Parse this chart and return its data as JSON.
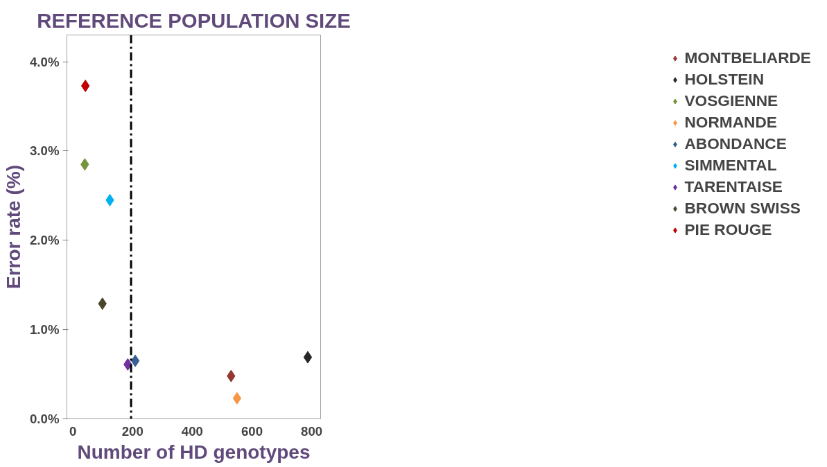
{
  "chart_data": {
    "type": "scatter",
    "title": "REFERENCE POPULATION SIZE",
    "xlabel": "Number of HD genotypes",
    "ylabel": "Error rate (%)",
    "xlim": [
      -20,
      830
    ],
    "ylim": [
      0,
      4.3
    ],
    "xticks": [
      0,
      200,
      400,
      600,
      800
    ],
    "yticks": [
      {
        "value": 0,
        "label": "0.0%"
      },
      {
        "value": 1,
        "label": "1.0%"
      },
      {
        "value": 2,
        "label": "2.0%"
      },
      {
        "value": 3,
        "label": "3.0%"
      },
      {
        "value": 4,
        "label": "4.0%"
      }
    ],
    "grid": false,
    "legend": "right",
    "marker": "diamond",
    "ref_lines": [
      {
        "axis": "x",
        "value": 195,
        "line_style": "dashdot",
        "color": "#000000"
      }
    ],
    "series": [
      {
        "name": "MONTBELIARDE",
        "color": "#953735",
        "x": [
          530
        ],
        "values": [
          0.48
        ]
      },
      {
        "name": "HOLSTEIN",
        "color": "#262626",
        "x": [
          787
        ],
        "values": [
          0.69
        ]
      },
      {
        "name": "VOSGIENNE",
        "color": "#77933c",
        "x": [
          40
        ],
        "values": [
          2.85
        ]
      },
      {
        "name": "NORMANDE",
        "color": "#f79646",
        "x": [
          550
        ],
        "values": [
          0.23
        ]
      },
      {
        "name": "ABONDANCE",
        "color": "#376092",
        "x": [
          209
        ],
        "values": [
          0.65
        ]
      },
      {
        "name": "SIMMENTAL",
        "color": "#00b0f0",
        "x": [
          124
        ],
        "values": [
          2.45
        ]
      },
      {
        "name": "TARENTAISE",
        "color": "#7030a0",
        "x": [
          184
        ],
        "values": [
          0.61
        ]
      },
      {
        "name": "BROWN SWISS",
        "color": "#4a452a",
        "x": [
          99
        ],
        "values": [
          1.29
        ]
      },
      {
        "name": "PIE ROUGE",
        "color": "#c00000",
        "x": [
          42
        ],
        "values": [
          3.73
        ]
      }
    ]
  }
}
